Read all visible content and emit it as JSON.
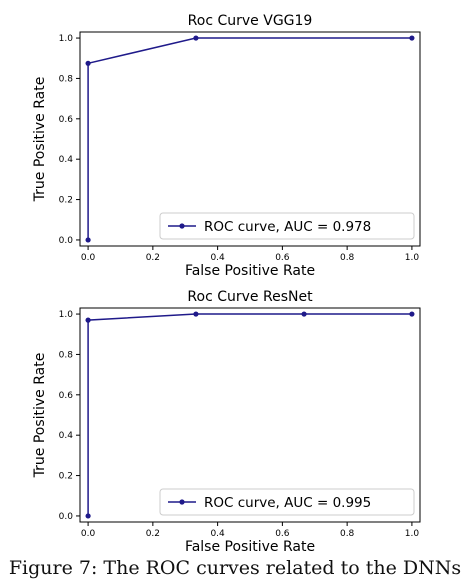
{
  "chart_data": [
    {
      "type": "line",
      "title": "Roc Curve VGG19",
      "xlabel": "False Positive Rate",
      "ylabel": "True Positive Rate",
      "xlim": [
        -0.025,
        1.025
      ],
      "ylim": [
        -0.03,
        1.03
      ],
      "xticks": [
        "0.0",
        "0.2",
        "0.4",
        "0.6",
        "0.8",
        "1.0"
      ],
      "yticks": [
        "0.0",
        "0.2",
        "0.4",
        "0.6",
        "0.8",
        "1.0"
      ],
      "legend": "lower-right",
      "series": [
        {
          "name": "ROC curve, AUC = 0.978",
          "color": "#1f1a8a",
          "x": [
            0.0,
            0.0,
            0.333,
            1.0
          ],
          "y": [
            0.0,
            0.875,
            1.0,
            1.0
          ]
        }
      ]
    },
    {
      "type": "line",
      "title": "Roc Curve ResNet",
      "xlabel": "False Positive Rate",
      "ylabel": "True Positive Rate",
      "xlim": [
        -0.025,
        1.025
      ],
      "ylim": [
        -0.03,
        1.03
      ],
      "xticks": [
        "0.0",
        "0.2",
        "0.4",
        "0.6",
        "0.8",
        "1.0"
      ],
      "yticks": [
        "0.0",
        "0.2",
        "0.4",
        "0.6",
        "0.8",
        "1.0"
      ],
      "legend": "lower-right",
      "series": [
        {
          "name": "ROC curve, AUC = 0.995",
          "color": "#1f1a8a",
          "x": [
            0.0,
            0.0,
            0.333,
            0.667,
            1.0
          ],
          "y": [
            0.0,
            0.97,
            1.0,
            1.0,
            1.0
          ]
        }
      ]
    }
  ],
  "caption": "Figure 7: The ROC curves related to the DNNs"
}
